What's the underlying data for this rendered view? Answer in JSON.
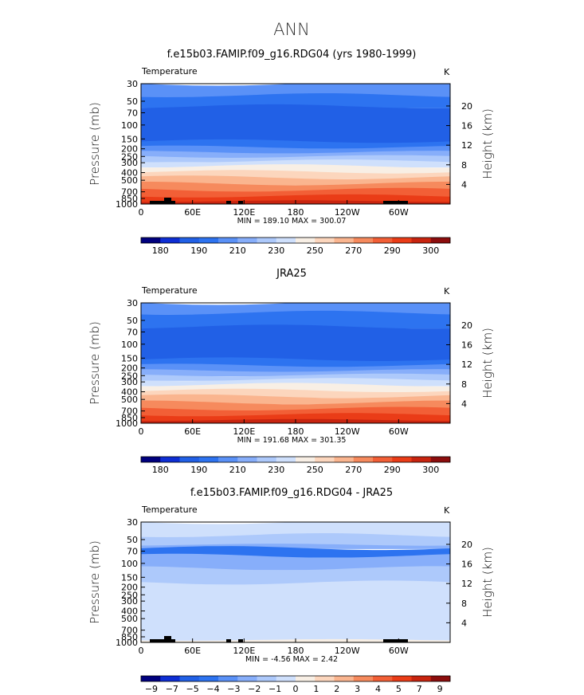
{
  "page": {
    "title": "ANN"
  },
  "chart_data": [
    {
      "type": "heatmap",
      "title": "f.e15b03.FAMIP.f09_g16.RDG04 (yrs 1980-1999)",
      "variable": "Temperature",
      "units": "K",
      "ylabel": "Pressure  (mb)",
      "y2label": "Height  (km)",
      "y_ticks": [
        30,
        50,
        70,
        100,
        150,
        200,
        250,
        300,
        400,
        500,
        700,
        850,
        1000
      ],
      "y2_ticks": [
        4,
        8,
        12,
        16,
        20
      ],
      "x_ticks": [
        "0",
        "60E",
        "120E",
        "180",
        "120W",
        "60W"
      ],
      "stats": "MIN = 189.10   MAX = 300.07",
      "colorbar_labels": [
        "180",
        "190",
        "210",
        "230",
        "250",
        "270",
        "290",
        "300"
      ],
      "colorbar_colors": [
        "#00007e",
        "#0e2ed4",
        "#2160e6",
        "#2d73f0",
        "#5a91f7",
        "#87aefa",
        "#adc9fb",
        "#cfe0fc",
        "#f8efe5",
        "#fcd6bd",
        "#fab58f",
        "#f68a5d",
        "#f25f36",
        "#ea3c17",
        "#c8240f",
        "#8c0d0d"
      ],
      "bands": [
        {
          "p_top": 30,
          "p_bottom": 42,
          "color": "#5a91f7"
        },
        {
          "p_top": 42,
          "p_bottom": 58,
          "color": "#2d73f0"
        },
        {
          "p_top": 58,
          "p_bottom": 160,
          "color": "#2160e6"
        },
        {
          "p_top": 160,
          "p_bottom": 190,
          "color": "#2d73f0"
        },
        {
          "p_top": 190,
          "p_bottom": 220,
          "color": "#5a91f7"
        },
        {
          "p_top": 220,
          "p_bottom": 250,
          "color": "#87aefa"
        },
        {
          "p_top": 250,
          "p_bottom": 285,
          "color": "#adc9fb"
        },
        {
          "p_top": 285,
          "p_bottom": 330,
          "color": "#cfe0fc"
        },
        {
          "p_top": 330,
          "p_bottom": 390,
          "color": "#f8efe5"
        },
        {
          "p_top": 390,
          "p_bottom": 460,
          "color": "#fcd6bd"
        },
        {
          "p_top": 460,
          "p_bottom": 550,
          "color": "#fab58f"
        },
        {
          "p_top": 550,
          "p_bottom": 660,
          "color": "#f68a5d"
        },
        {
          "p_top": 660,
          "p_bottom": 790,
          "color": "#f25f36"
        },
        {
          "p_top": 790,
          "p_bottom": 920,
          "color": "#ea3c17"
        },
        {
          "p_top": 920,
          "p_bottom": 1000,
          "color": "#c8240f"
        }
      ]
    },
    {
      "type": "heatmap",
      "title": "JRA25",
      "variable": "Temperature",
      "units": "K",
      "ylabel": "Pressure  (mb)",
      "y2label": "Height  (km)",
      "y_ticks": [
        30,
        50,
        70,
        100,
        150,
        200,
        250,
        300,
        400,
        500,
        700,
        850,
        1000
      ],
      "y2_ticks": [
        4,
        8,
        12,
        16,
        20
      ],
      "x_ticks": [
        "0",
        "60E",
        "120E",
        "180",
        "120W",
        "60W"
      ],
      "stats": "MIN = 191.68   MAX = 301.35",
      "colorbar_labels": [
        "180",
        "190",
        "210",
        "230",
        "250",
        "270",
        "290",
        "300"
      ],
      "colorbar_colors": [
        "#00007e",
        "#0e2ed4",
        "#2160e6",
        "#2d73f0",
        "#5a91f7",
        "#87aefa",
        "#adc9fb",
        "#cfe0fc",
        "#f8efe5",
        "#fcd6bd",
        "#fab58f",
        "#f68a5d",
        "#f25f36",
        "#ea3c17",
        "#c8240f",
        "#8c0d0d"
      ],
      "bands": [
        {
          "p_top": 30,
          "p_bottom": 40,
          "color": "#5a91f7"
        },
        {
          "p_top": 40,
          "p_bottom": 60,
          "color": "#2d73f0"
        },
        {
          "p_top": 60,
          "p_bottom": 155,
          "color": "#2160e6"
        },
        {
          "p_top": 155,
          "p_bottom": 185,
          "color": "#2d73f0"
        },
        {
          "p_top": 185,
          "p_bottom": 215,
          "color": "#5a91f7"
        },
        {
          "p_top": 215,
          "p_bottom": 245,
          "color": "#87aefa"
        },
        {
          "p_top": 245,
          "p_bottom": 280,
          "color": "#adc9fb"
        },
        {
          "p_top": 280,
          "p_bottom": 325,
          "color": "#cfe0fc"
        },
        {
          "p_top": 325,
          "p_bottom": 385,
          "color": "#f8efe5"
        },
        {
          "p_top": 385,
          "p_bottom": 455,
          "color": "#fcd6bd"
        },
        {
          "p_top": 455,
          "p_bottom": 545,
          "color": "#fab58f"
        },
        {
          "p_top": 545,
          "p_bottom": 655,
          "color": "#f68a5d"
        },
        {
          "p_top": 655,
          "p_bottom": 780,
          "color": "#f25f36"
        },
        {
          "p_top": 780,
          "p_bottom": 910,
          "color": "#ea3c17"
        },
        {
          "p_top": 910,
          "p_bottom": 1000,
          "color": "#c8240f"
        }
      ]
    },
    {
      "type": "heatmap",
      "title": "f.e15b03.FAMIP.f09_g16.RDG04 - JRA25",
      "variable": "Temperature",
      "units": "K",
      "ylabel": "Pressure  (mb)",
      "y2label": "Height  (km)",
      "y_ticks": [
        30,
        50,
        70,
        100,
        150,
        200,
        250,
        300,
        400,
        500,
        700,
        850,
        1000
      ],
      "y2_ticks": [
        4,
        8,
        12,
        16,
        20
      ],
      "x_ticks": [
        "0",
        "60E",
        "120E",
        "180",
        "120W",
        "60W"
      ],
      "stats": "MIN =  -4.56   MAX =   2.42",
      "colorbar_labels": [
        "−9",
        "−7",
        "−5",
        "−4",
        "−3",
        "−2",
        "−1",
        "0",
        "1",
        "2",
        "3",
        "4",
        "5",
        "7",
        "9"
      ],
      "colorbar_colors": [
        "#00007e",
        "#0e2ed4",
        "#2160e6",
        "#2d73f0",
        "#5a91f7",
        "#87aefa",
        "#adc9fb",
        "#cfe0fc",
        "#f8efe5",
        "#fcd6bd",
        "#fab58f",
        "#f68a5d",
        "#f25f36",
        "#ea3c17",
        "#c8240f",
        "#8c0d0d"
      ],
      "bands": [
        {
          "p_top": 30,
          "p_bottom": 44,
          "color": "#cfe0fc"
        },
        {
          "p_top": 44,
          "p_bottom": 58,
          "color": "#adc9fb"
        },
        {
          "p_top": 58,
          "p_bottom": 64,
          "color": "#87aefa"
        },
        {
          "p_top": 64,
          "p_bottom": 80,
          "color": "#2d73f0"
        },
        {
          "p_top": 80,
          "p_bottom": 115,
          "color": "#87aefa"
        },
        {
          "p_top": 115,
          "p_bottom": 175,
          "color": "#adc9fb"
        },
        {
          "p_top": 175,
          "p_bottom": 930,
          "color": "#cfe0fc"
        },
        {
          "p_top": 930,
          "p_bottom": 1000,
          "color": "#f8efe5"
        }
      ]
    }
  ]
}
